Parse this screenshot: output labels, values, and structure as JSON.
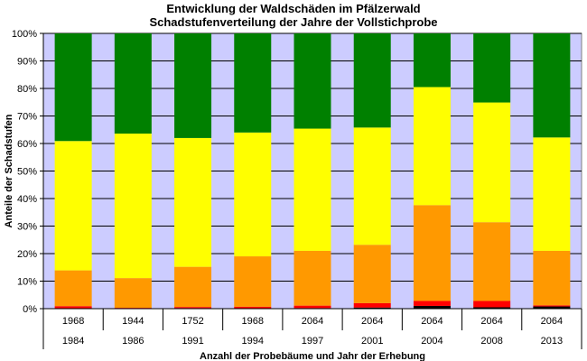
{
  "chart_data": {
    "type": "bar",
    "stacked": true,
    "title": "Entwicklung der Waldschäden im Pfälzerwald",
    "subtitle": "Schadstufenverteilung der Jahre der Vollstichprobe",
    "ylabel": "Anteile der Schadstufen",
    "xlabel": "Anzahl der Probebäume und Jahr der Erhebung",
    "ylim": [
      0,
      100
    ],
    "yticks": [
      "0%",
      "10%",
      "20%",
      "30%",
      "40%",
      "50%",
      "60%",
      "70%",
      "80%",
      "90%",
      "100%"
    ],
    "categories": [
      "1984",
      "1986",
      "1991",
      "1994",
      "1997",
      "2001",
      "2004",
      "2008",
      "2013"
    ],
    "sample_counts": [
      "1968",
      "1944",
      "1752",
      "1968",
      "2064",
      "2064",
      "2064",
      "2064",
      "2064"
    ],
    "series": [
      {
        "color": "#000000",
        "values": [
          0.1,
          0.1,
          0.2,
          0.1,
          0.2,
          0.4,
          1.0,
          0.5,
          0.8
        ]
      },
      {
        "color": "#ff0000",
        "values": [
          0.8,
          0.2,
          0.4,
          0.6,
          0.9,
          1.6,
          1.8,
          2.3,
          0.4
        ]
      },
      {
        "color": "#ff9900",
        "values": [
          13.0,
          10.8,
          14.6,
          18.3,
          19.9,
          21.2,
          34.8,
          28.6,
          19.8
        ]
      },
      {
        "color": "#ffff00",
        "values": [
          47.0,
          52.5,
          46.8,
          45.0,
          44.4,
          42.6,
          42.9,
          43.5,
          41.2
        ]
      },
      {
        "color": "#008000",
        "values": [
          39.1,
          36.4,
          38.0,
          36.0,
          34.6,
          34.2,
          19.5,
          25.1,
          37.8
        ]
      }
    ],
    "grid": true,
    "plot_background": "#ccccff"
  }
}
